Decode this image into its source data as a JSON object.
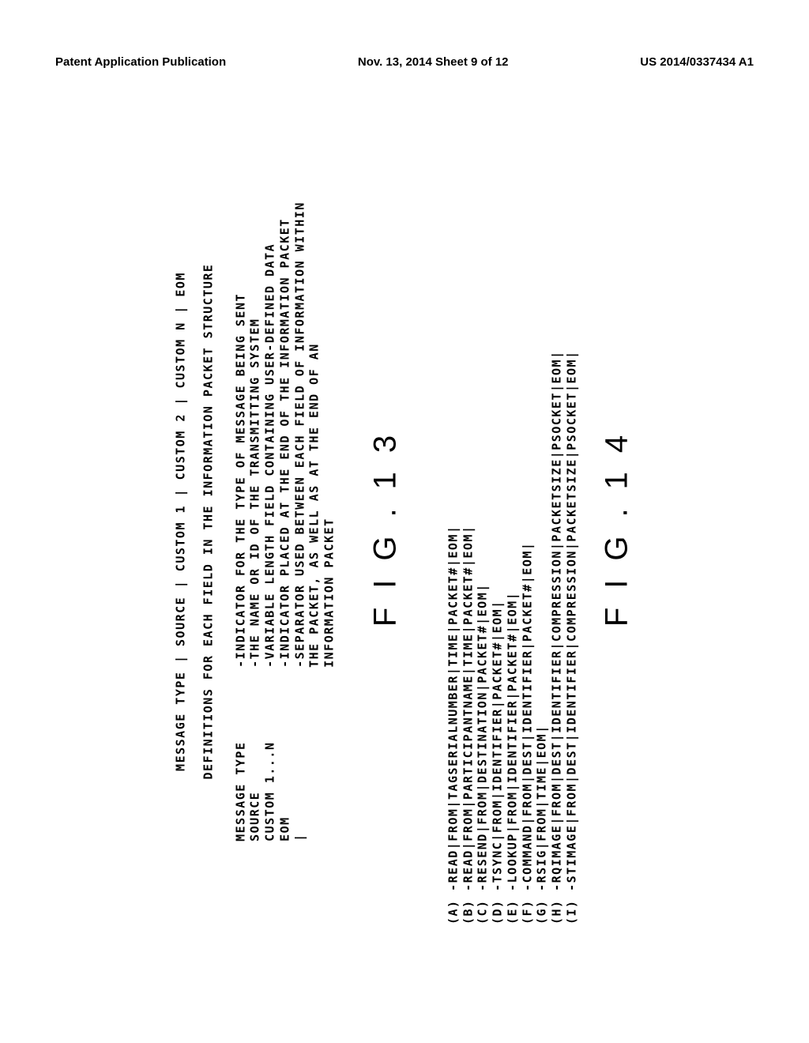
{
  "header": {
    "left": "Patent Application Publication",
    "center": "Nov. 13, 2014  Sheet 9 of 12",
    "right": "US 2014/0337434 A1"
  },
  "fig13": {
    "title": "MESSAGE TYPE | SOURCE | CUSTOM 1 | CUSTOM 2 | CUSTOM N | EOM",
    "subtitle": "DEFINITIONS FOR EACH FIELD IN THE INFORMATION PACKET STRUCTURE",
    "left_lines": [
      "MESSAGE TYPE",
      "SOURCE",
      "CUSTOM 1...N",
      "EOM",
      "|"
    ],
    "right_lines": [
      "-INDICATOR FOR THE TYPE OF MESSAGE BEING SENT",
      "-THE NAME OR ID OF THE TRANSMITTING SYSTEM",
      "-VARIABLE LENGTH FIELD CONTAINING USER-DEFINED DATA",
      "-INDICATOR PLACED AT THE END OF THE INFORMATION PACKET",
      "-SEPARATOR USED BETWEEN EACH FIELD OF INFORMATION WITHIN",
      " THE PACKET, AS WELL AS AT THE END OF AN",
      " INFORMATION PACKET"
    ],
    "label": "FIG.13"
  },
  "fig14": {
    "lines": [
      "(A)  -READ|FROM|TAGSERIALNUMBER|TIME|PACKET#|EOM|",
      "(B)  -READ|FROM|PARTICIPANTNAME|TIME|PACKET#|EOM|",
      "(C)  -RESEND|FROM|DESTINATION|PACKET#|EOM|",
      "(D)  -TSYNC|FROM|IDENTIFIER|PACKET#|EOM|",
      "(E)  -LOOKUP|FROM|IDENTIFIER|PACKET#|EOM|",
      "(F)  -COMMAND|FROM|DEST|IDENTIFIER|PACKET#|EOM|",
      "(G)  -RSIG|FROM|TIME|EOM|",
      "(H)  -RQIMAGE|FROM|DEST|IDENTIFIER|COMPRESSION|PACKETSIZE|PSOCKET|EOM|",
      "(I)  -STIMAGE|FROM|DEST|IDENTIFIER|COMPRESSION|PACKETSIZE|PSOCKET|EOM|"
    ],
    "label": "FIG.14"
  }
}
